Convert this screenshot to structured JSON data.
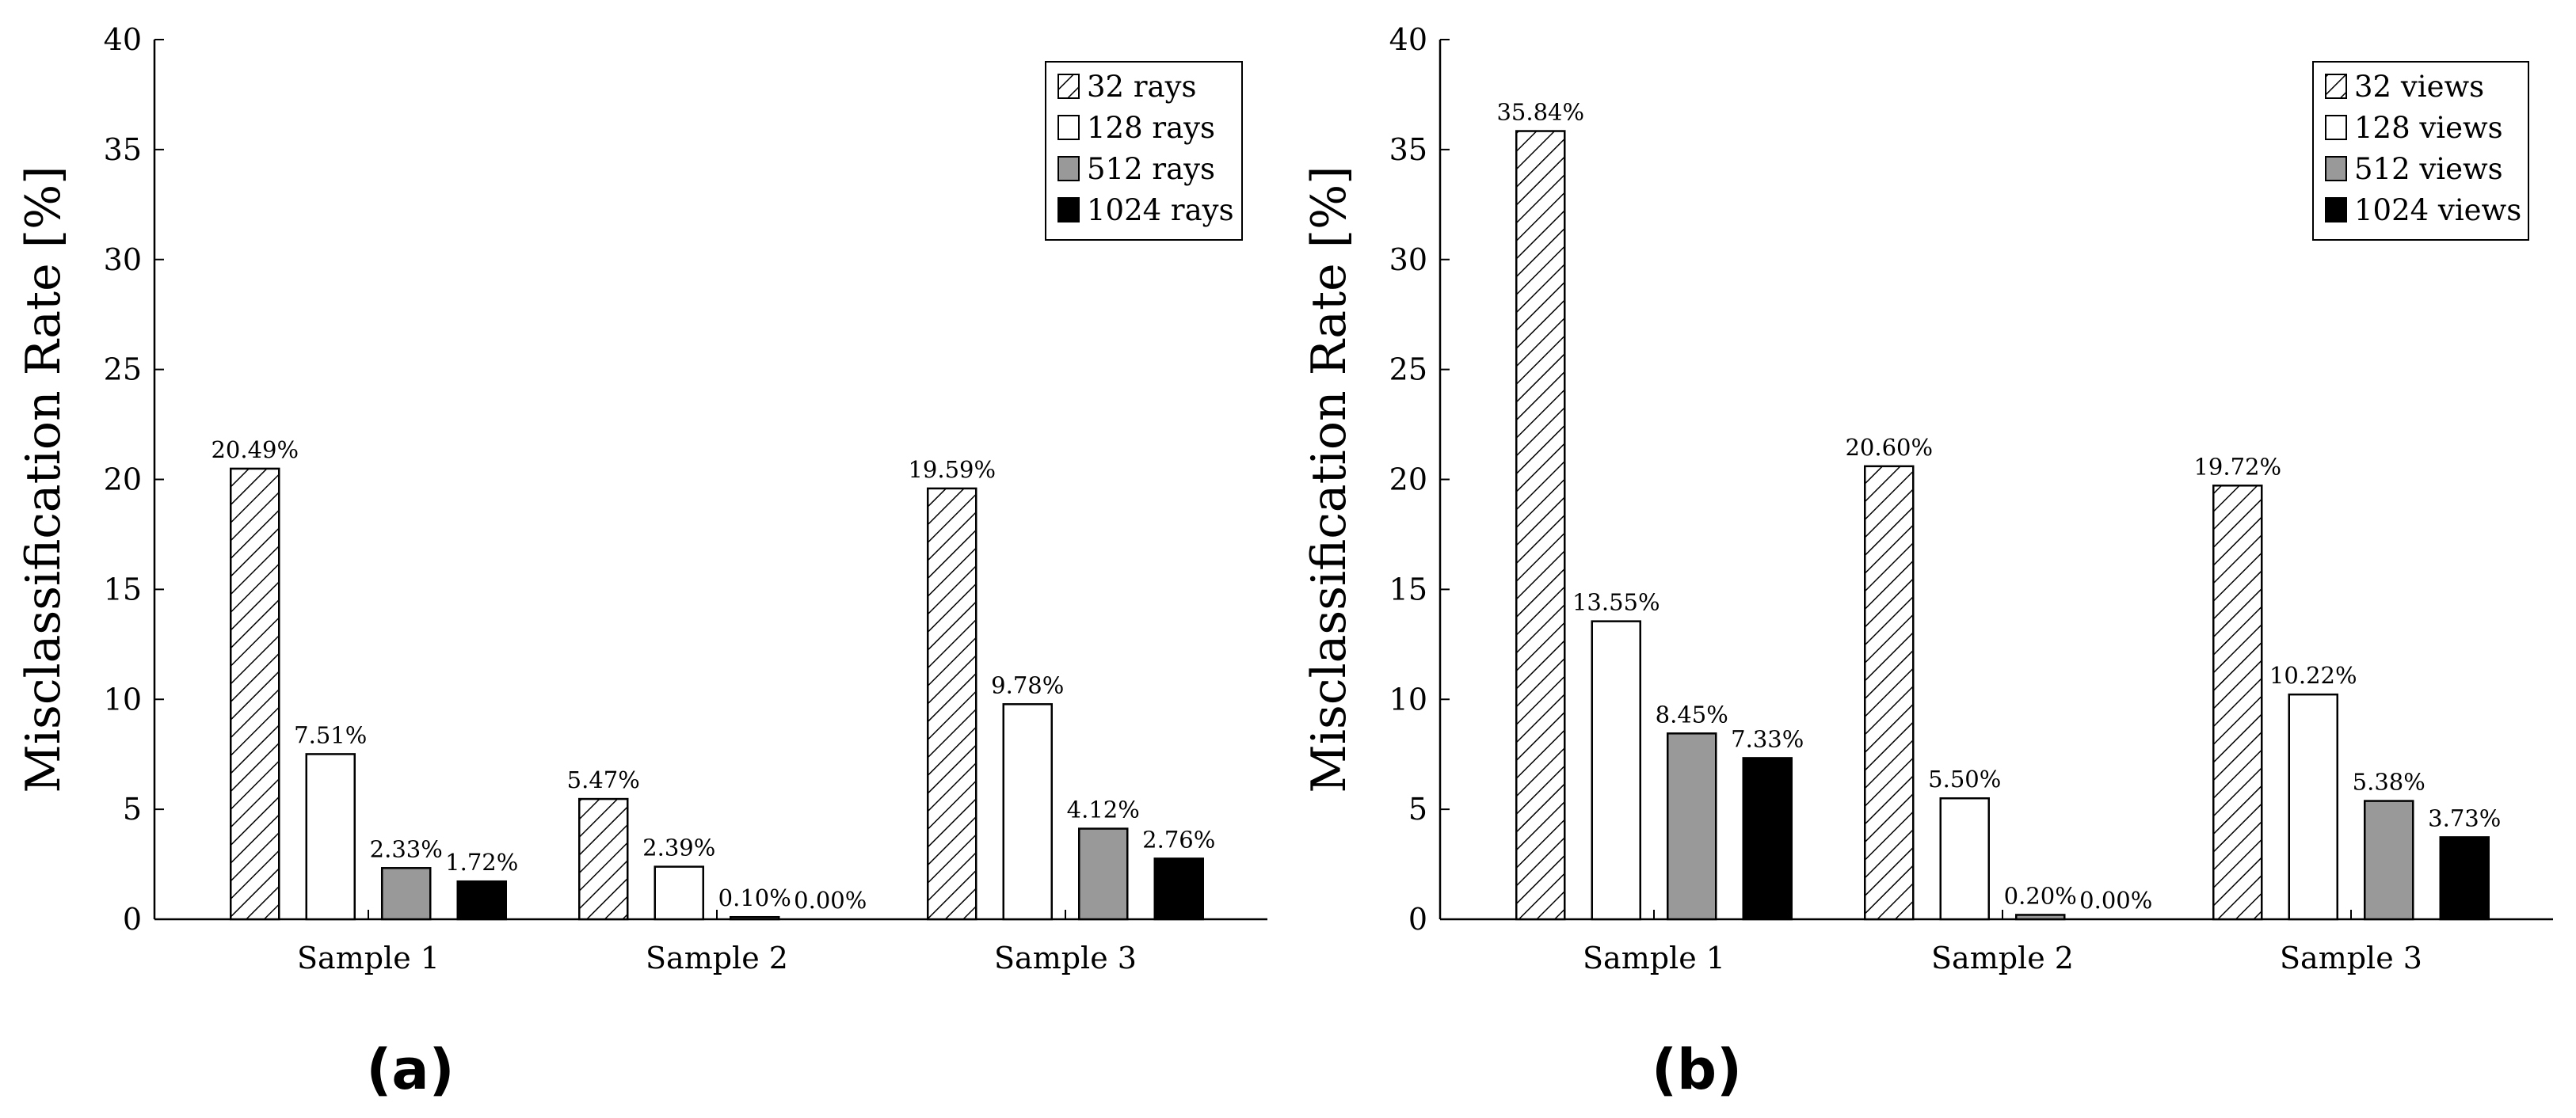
{
  "chart_data": [
    {
      "type": "bar",
      "panel_label": "(a)",
      "title": "",
      "xlabel": "",
      "ylabel": "Misclassification Rate [%]",
      "ylim": [
        0,
        40
      ],
      "yticks": [
        0,
        5,
        10,
        15,
        20,
        25,
        30,
        35,
        40
      ],
      "grid": false,
      "legend_position": "top-right",
      "categories": [
        "Sample 1",
        "Sample 2",
        "Sample 3"
      ],
      "series": [
        {
          "name": "32 rays",
          "style": "hatched",
          "values": [
            20.49,
            5.47,
            19.59
          ],
          "labels": [
            "20.49%",
            "5.47%",
            "19.59%"
          ]
        },
        {
          "name": "128 rays",
          "style": "white",
          "values": [
            7.51,
            2.39,
            9.78
          ],
          "labels": [
            "7.51%",
            "2.39%",
            "9.78%"
          ]
        },
        {
          "name": "512 rays",
          "style": "gray",
          "values": [
            2.33,
            0.1,
            4.12
          ],
          "labels": [
            "2.33%",
            "0.10%",
            "4.12%"
          ]
        },
        {
          "name": "1024 rays",
          "style": "black",
          "values": [
            1.72,
            0.0,
            2.76
          ],
          "labels": [
            "1.72%",
            "0.00%",
            "2.76%"
          ]
        }
      ]
    },
    {
      "type": "bar",
      "panel_label": "(b)",
      "title": "",
      "xlabel": "",
      "ylabel": "Misclassification Rate [%]",
      "ylim": [
        0,
        40
      ],
      "yticks": [
        0,
        5,
        10,
        15,
        20,
        25,
        30,
        35,
        40
      ],
      "grid": false,
      "legend_position": "top-right",
      "categories": [
        "Sample 1",
        "Sample 2",
        "Sample 3"
      ],
      "series": [
        {
          "name": "32 views",
          "style": "hatched",
          "values": [
            35.84,
            20.6,
            19.72
          ],
          "labels": [
            "35.84%",
            "20.60%",
            "19.72%"
          ]
        },
        {
          "name": "128 views",
          "style": "white",
          "values": [
            13.55,
            5.5,
            10.22
          ],
          "labels": [
            "13.55%",
            "5.50%",
            "10.22%"
          ]
        },
        {
          "name": "512 views",
          "style": "gray",
          "values": [
            8.45,
            0.2,
            5.38
          ],
          "labels": [
            "8.45%",
            "0.20%",
            "5.38%"
          ]
        },
        {
          "name": "1024 views",
          "style": "black",
          "values": [
            7.33,
            0.0,
            3.73
          ],
          "labels": [
            "7.33%",
            "0.00%",
            "3.73%"
          ]
        }
      ]
    }
  ],
  "colors": {
    "axis": "#000000",
    "hatched_fill": "#ffffff",
    "white_fill": "#ffffff",
    "gray_fill": "#999999",
    "black_fill": "#000000"
  }
}
